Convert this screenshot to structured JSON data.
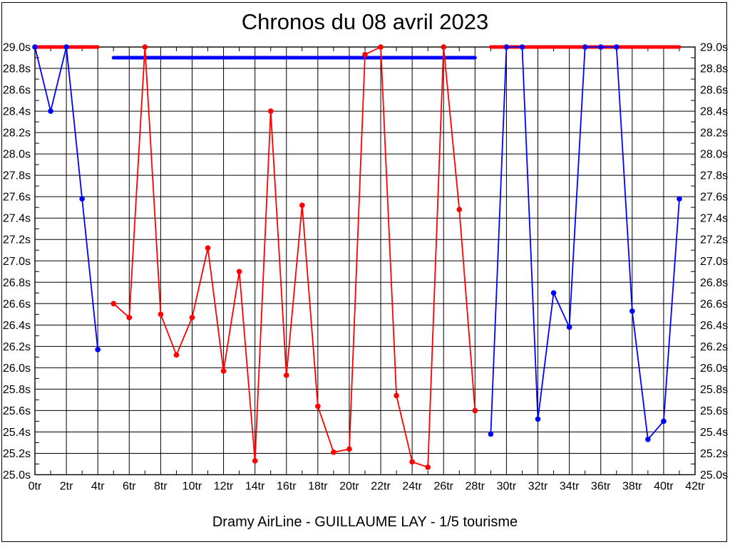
{
  "chart_data": {
    "type": "line",
    "title": "Chronos du 08 avril 2023",
    "caption": "Dramy AirLine - GUILLAUME LAY - 1/5 tourisme",
    "xlim": [
      0,
      42
    ],
    "ylim": [
      25.0,
      29.0
    ],
    "x_unit": "tr",
    "y_unit": "s",
    "grid": true,
    "axis_color": "#000000",
    "background_color": "#ffffff",
    "x_tick_values": [
      0,
      2,
      4,
      6,
      8,
      10,
      12,
      14,
      16,
      18,
      20,
      22,
      24,
      26,
      28,
      30,
      32,
      34,
      36,
      38,
      40,
      42
    ],
    "x_tick_labels": [
      "0tr",
      "2tr",
      "4tr",
      "6tr",
      "8tr",
      "10tr",
      "12tr",
      "14tr",
      "16tr",
      "18tr",
      "20tr",
      "22tr",
      "24tr",
      "26tr",
      "28tr",
      "30tr",
      "32tr",
      "34tr",
      "36tr",
      "38tr",
      "40tr",
      "42tr"
    ],
    "y_tick_values": [
      29.0,
      28.8,
      28.6,
      28.4,
      28.2,
      28.0,
      27.8,
      27.6,
      27.4,
      27.2,
      27.0,
      26.8,
      26.6,
      26.4,
      26.2,
      26.0,
      25.8,
      25.6,
      25.4,
      25.2,
      25.0
    ],
    "y_tick_labels": [
      "29.0s",
      "28.8s",
      "28.6s",
      "28.4s",
      "28.2s",
      "28.0s",
      "27.8s",
      "27.6s",
      "27.4s",
      "27.2s",
      "27.0s",
      "26.8s",
      "26.6s",
      "26.4s",
      "26.2s",
      "26.0s",
      "25.8s",
      "25.6s",
      "25.4s",
      "25.2s",
      "25.0s"
    ],
    "x_minor_step": 1,
    "y_minor_step": 0.1,
    "series": [
      {
        "name": "blue-lap-times",
        "color": "#0000ff",
        "marker": "circle",
        "segments": [
          [
            [
              0,
              29.0
            ],
            [
              1,
              28.4
            ],
            [
              2,
              29.0
            ],
            [
              3,
              27.58
            ],
            [
              4,
              26.17
            ]
          ],
          [
            [
              29,
              25.38
            ],
            [
              30,
              29.0
            ],
            [
              31,
              29.0
            ],
            [
              32,
              25.52
            ],
            [
              33,
              26.7
            ],
            [
              34,
              26.38
            ],
            [
              35,
              29.0
            ],
            [
              36,
              29.0
            ],
            [
              37,
              29.0
            ],
            [
              38,
              26.53
            ],
            [
              39,
              25.33
            ],
            [
              40,
              25.5
            ],
            [
              41,
              27.58
            ]
          ]
        ],
        "flat_segments": [
          {
            "value": 28.9,
            "x_from": 5,
            "x_to": 28
          }
        ]
      },
      {
        "name": "red-lap-times",
        "color": "#ff0000",
        "marker": "circle",
        "segments": [
          [
            [
              5,
              26.6
            ],
            [
              6,
              26.47
            ],
            [
              7,
              29.0
            ],
            [
              8,
              26.5
            ],
            [
              9,
              26.12
            ],
            [
              10,
              26.47
            ],
            [
              11,
              27.12
            ],
            [
              12,
              25.97
            ],
            [
              13,
              26.9
            ],
            [
              14,
              25.13
            ],
            [
              15,
              28.4
            ],
            [
              16,
              25.93
            ],
            [
              17,
              27.52
            ],
            [
              18,
              25.64
            ],
            [
              19,
              25.21
            ],
            [
              20,
              25.24
            ],
            [
              21,
              28.93
            ],
            [
              22,
              29.0
            ],
            [
              23,
              25.74
            ],
            [
              24,
              25.12
            ],
            [
              25,
              25.07
            ],
            [
              26,
              29.0
            ],
            [
              27,
              27.48
            ],
            [
              28,
              25.6
            ]
          ]
        ],
        "flat_segments": [
          {
            "value": 29.0,
            "x_from": 0,
            "x_to": 4
          },
          {
            "value": 29.0,
            "x_from": 29,
            "x_to": 41
          }
        ]
      }
    ]
  }
}
